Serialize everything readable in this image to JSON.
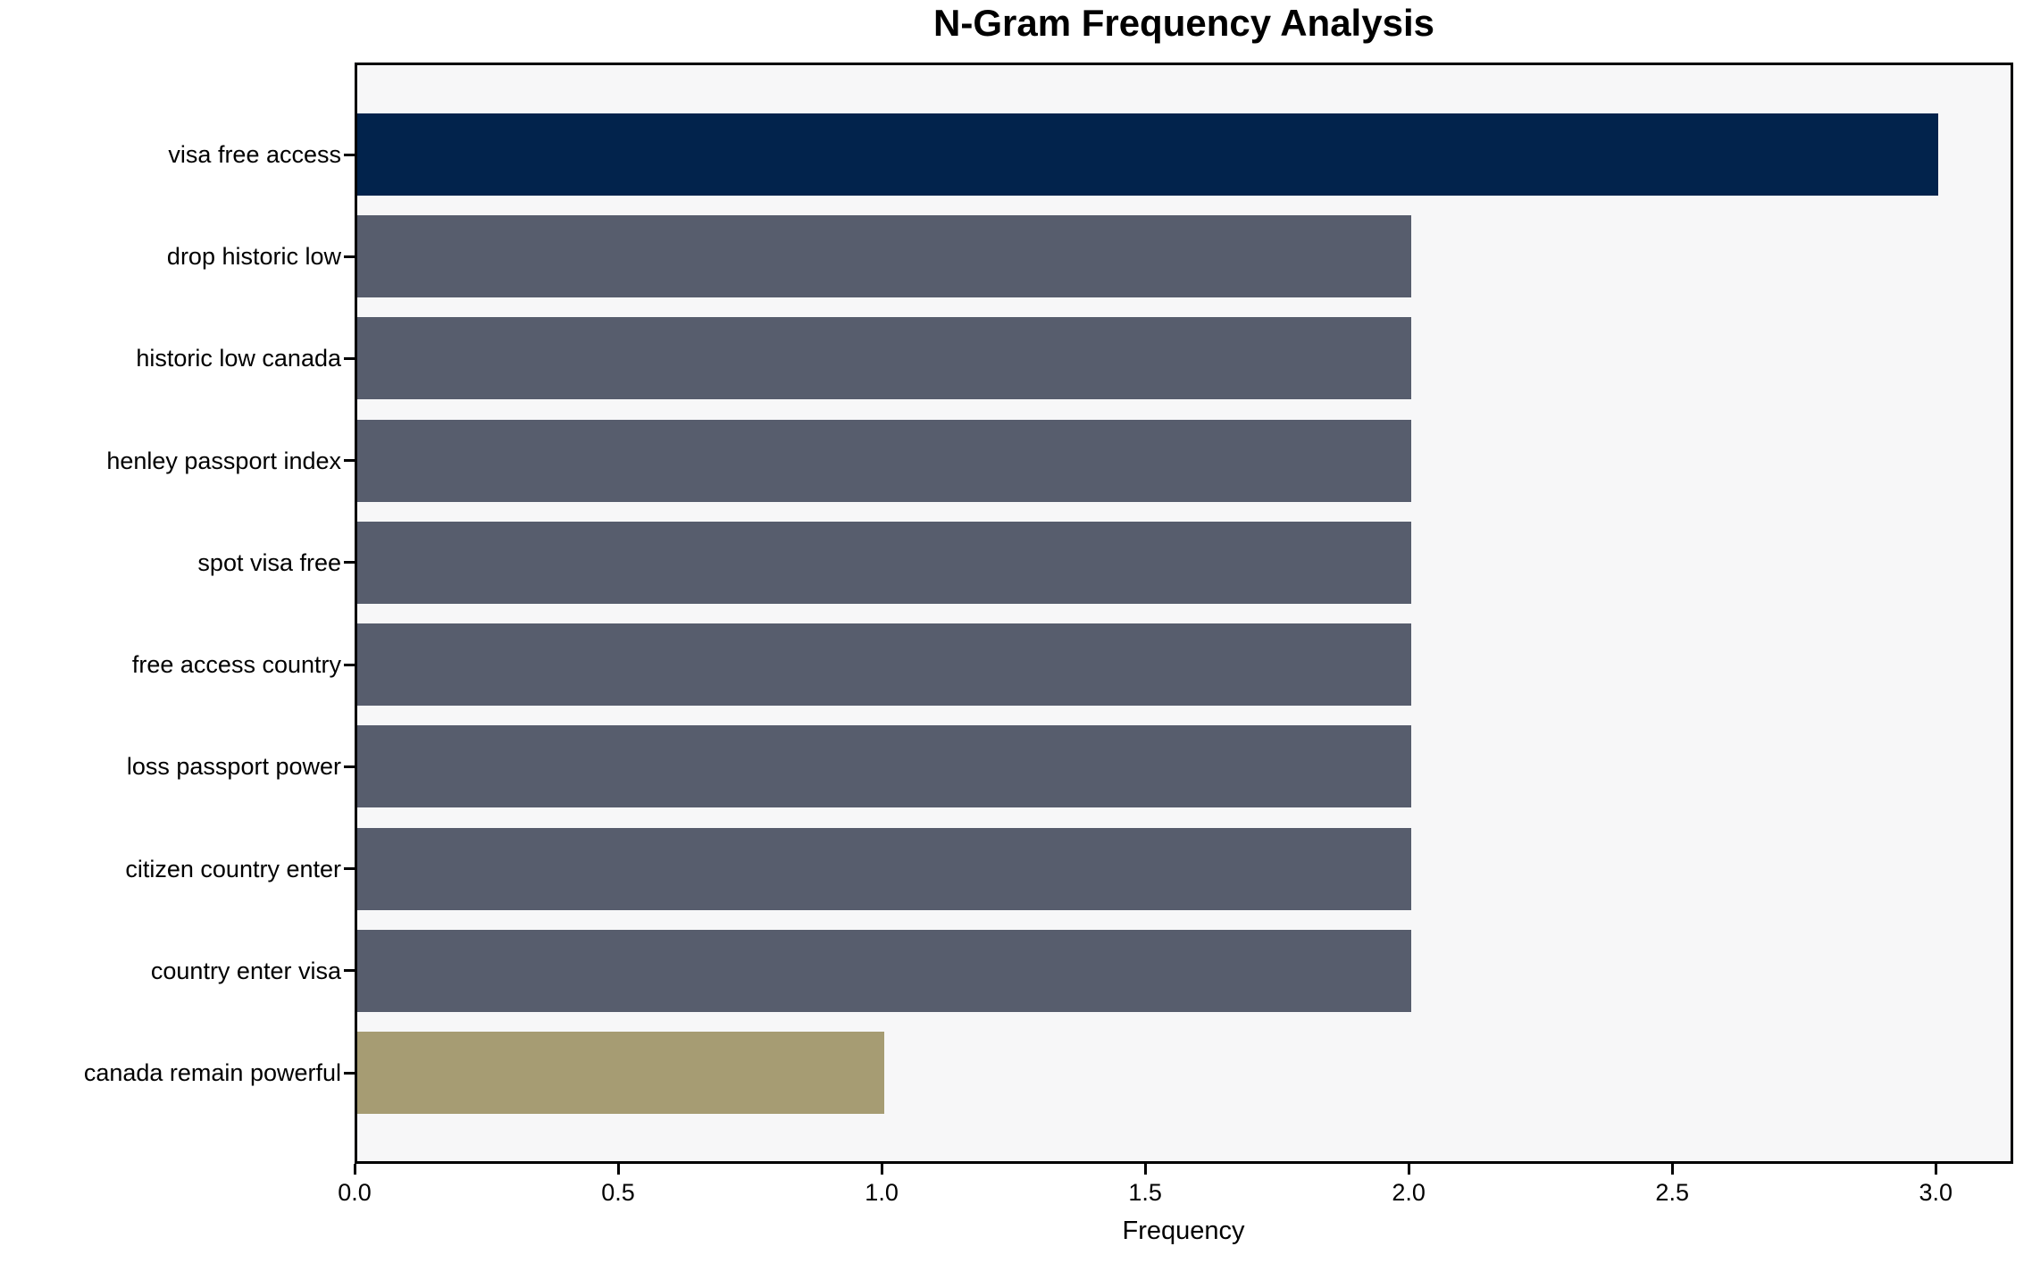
{
  "chart_data": {
    "type": "bar",
    "orientation": "horizontal",
    "title": "N-Gram Frequency Analysis",
    "xlabel": "Frequency",
    "ylabel": "",
    "categories": [
      "visa free access",
      "drop historic low",
      "historic low canada",
      "henley passport index",
      "spot visa free",
      "free access country",
      "loss passport power",
      "citizen country enter",
      "country enter visa",
      "canada remain powerful"
    ],
    "values": [
      3,
      2,
      2,
      2,
      2,
      2,
      2,
      2,
      2,
      1
    ],
    "bar_colors": [
      "#02234c",
      "#575d6d",
      "#575d6d",
      "#575d6d",
      "#575d6d",
      "#575d6d",
      "#575d6d",
      "#575d6d",
      "#575d6d",
      "#a69c73"
    ],
    "xlim": [
      0,
      3.147
    ],
    "xticks": [
      0.0,
      0.5,
      1.0,
      1.5,
      2.0,
      2.5,
      3.0
    ],
    "xtick_labels": [
      "0.0",
      "0.5",
      "1.0",
      "1.5",
      "2.0",
      "2.5",
      "3.0"
    ],
    "grid": false,
    "legend": null,
    "colors": {
      "highest_bar": "#02234c",
      "middle_bars": "#575d6d",
      "lowest_bar": "#a69c73",
      "plot_background": "#f7f7f8",
      "figure_background": "#ffffff",
      "frame": "#000000"
    }
  }
}
